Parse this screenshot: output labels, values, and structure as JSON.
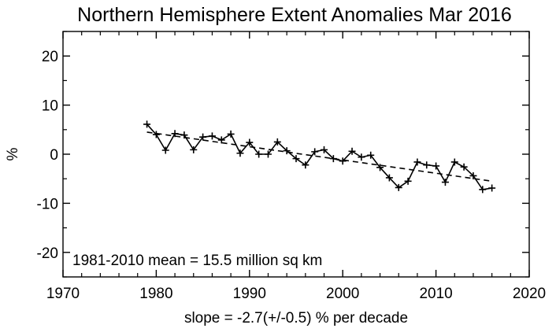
{
  "chart_data": {
    "type": "line",
    "title": "Northern Hemisphere Extent Anomalies Mar 2016",
    "xlabel": "slope =  -2.7(+/-0.5) % per decade",
    "ylabel": "%",
    "annotation": "1981-2010 mean =  15.5 million sq km",
    "xlim": [
      1970,
      2020
    ],
    "ylim": [
      -25,
      25
    ],
    "xticks": [
      1970,
      1980,
      1990,
      2000,
      2010,
      2020
    ],
    "yticks": [
      -20,
      -10,
      0,
      10,
      20
    ],
    "grid": false,
    "series": [
      {
        "style": "solid line with plus markers",
        "color": "#000000",
        "x": [
          1979,
          1980,
          1981,
          1982,
          1983,
          1984,
          1985,
          1986,
          1987,
          1988,
          1989,
          1990,
          1991,
          1992,
          1993,
          1994,
          1995,
          1996,
          1997,
          1998,
          1999,
          2000,
          2001,
          2002,
          2003,
          2004,
          2005,
          2006,
          2007,
          2008,
          2009,
          2010,
          2011,
          2012,
          2013,
          2014,
          2015,
          2016
        ],
        "y": [
          6.1,
          4.0,
          0.8,
          4.2,
          3.9,
          0.9,
          3.5,
          3.7,
          2.9,
          4.1,
          0.2,
          2.4,
          0.0,
          0.0,
          2.5,
          0.7,
          -0.9,
          -2.2,
          0.5,
          0.9,
          -0.9,
          -1.4,
          0.6,
          -0.6,
          -0.2,
          -2.7,
          -4.8,
          -6.8,
          -5.5,
          -1.6,
          -2.2,
          -2.4,
          -5.7,
          -1.6,
          -2.6,
          -4.4,
          -7.2,
          -6.9
        ]
      },
      {
        "style": "dashed trend line",
        "color": "#000000",
        "x": [
          1979,
          2016
        ],
        "y": [
          4.5,
          -5.5
        ]
      }
    ]
  }
}
